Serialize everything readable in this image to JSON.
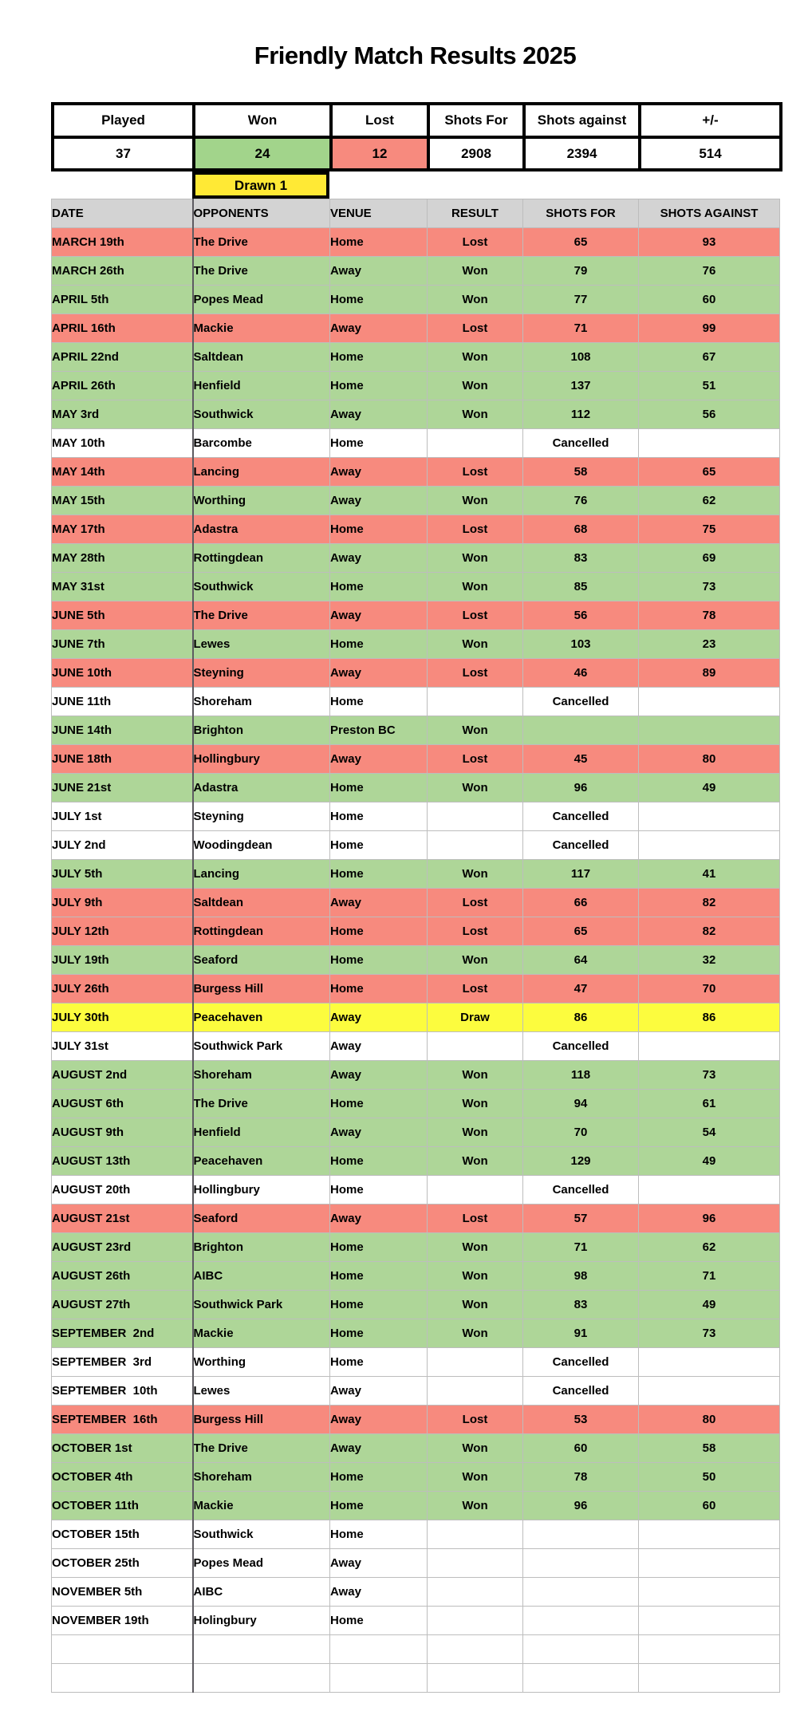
{
  "title": "Friendly Match Results 2025",
  "summary": {
    "headers": [
      "Played",
      "Won",
      "Lost",
      "Shots For",
      "Shots against",
      "+/-"
    ],
    "values": [
      "37",
      "24",
      "12",
      "2908",
      "2394",
      "514"
    ],
    "value_status": [
      "plain",
      "won",
      "lost",
      "plain",
      "plain",
      "plain"
    ],
    "drawn_label": "Drawn 1"
  },
  "table": {
    "headers": [
      "DATE",
      "OPPONENTS",
      "VENUE",
      "RESULT",
      "SHOTS FOR",
      "SHOTS AGAINST"
    ],
    "rows": [
      {
        "date": "MARCH 19th",
        "opponent": "The Drive",
        "venue": "Home",
        "result": "Lost",
        "shots_for": "65",
        "shots_against": "93",
        "status": "lost"
      },
      {
        "date": "MARCH 26th",
        "opponent": "The Drive",
        "venue": "Away",
        "result": "Won",
        "shots_for": "79",
        "shots_against": "76",
        "status": "won"
      },
      {
        "date": "APRIL 5th",
        "opponent": "Popes Mead",
        "venue": "Home",
        "result": "Won",
        "shots_for": "77",
        "shots_against": "60",
        "status": "won"
      },
      {
        "date": "APRIL 16th",
        "opponent": "Mackie",
        "venue": "Away",
        "result": "Lost",
        "shots_for": "71",
        "shots_against": "99",
        "status": "lost"
      },
      {
        "date": "APRIL 22nd",
        "opponent": "Saltdean",
        "venue": "Home",
        "result": "Won",
        "shots_for": "108",
        "shots_against": "67",
        "status": "won"
      },
      {
        "date": "APRIL 26th",
        "opponent": "Henfield",
        "venue": "Home",
        "result": "Won",
        "shots_for": "137",
        "shots_against": "51",
        "status": "won"
      },
      {
        "date": "MAY 3rd",
        "opponent": "Southwick",
        "venue": "Away",
        "result": "Won",
        "shots_for": "112",
        "shots_against": "56",
        "status": "won"
      },
      {
        "date": "MAY 10th",
        "opponent": "Barcombe",
        "venue": "Home",
        "result": "",
        "shots_for": "Cancelled",
        "shots_against": "",
        "status": "cancelled"
      },
      {
        "date": "MAY 14th",
        "opponent": "Lancing",
        "venue": "Away",
        "result": "Lost",
        "shots_for": "58",
        "shots_against": "65",
        "status": "lost"
      },
      {
        "date": "MAY 15th",
        "opponent": "Worthing",
        "venue": "Away",
        "result": "Won",
        "shots_for": "76",
        "shots_against": "62",
        "status": "won"
      },
      {
        "date": "MAY 17th",
        "opponent": "Adastra",
        "venue": "Home",
        "result": "Lost",
        "shots_for": "68",
        "shots_against": "75",
        "status": "lost"
      },
      {
        "date": "MAY 28th",
        "opponent": "Rottingdean",
        "venue": "Away",
        "result": "Won",
        "shots_for": "83",
        "shots_against": "69",
        "status": "won"
      },
      {
        "date": "MAY 31st",
        "opponent": "Southwick",
        "venue": "Home",
        "result": "Won",
        "shots_for": "85",
        "shots_against": "73",
        "status": "won"
      },
      {
        "date": "JUNE 5th",
        "opponent": "The Drive",
        "venue": "Away",
        "result": "Lost",
        "shots_for": "56",
        "shots_against": "78",
        "status": "lost"
      },
      {
        "date": "JUNE 7th",
        "opponent": "Lewes",
        "venue": "Home",
        "result": "Won",
        "shots_for": "103",
        "shots_against": "23",
        "status": "won"
      },
      {
        "date": "JUNE 10th",
        "opponent": "Steyning",
        "venue": "Away",
        "result": "Lost",
        "shots_for": "46",
        "shots_against": "89",
        "status": "lost"
      },
      {
        "date": "JUNE 11th",
        "opponent": "Shoreham",
        "venue": "Home",
        "result": "",
        "shots_for": "Cancelled",
        "shots_against": "",
        "status": "cancelled"
      },
      {
        "date": "JUNE 14th",
        "opponent": "Brighton",
        "venue": "Preston BC",
        "result": "Won",
        "shots_for": "",
        "shots_against": "",
        "status": "won"
      },
      {
        "date": "JUNE 18th",
        "opponent": "Hollingbury",
        "venue": "Away",
        "result": "Lost",
        "shots_for": "45",
        "shots_against": "80",
        "status": "lost"
      },
      {
        "date": "JUNE 21st",
        "opponent": "Adastra",
        "venue": "Home",
        "result": "Won",
        "shots_for": "96",
        "shots_against": "49",
        "status": "won"
      },
      {
        "date": "JULY 1st",
        "opponent": "Steyning",
        "venue": "Home",
        "result": "",
        "shots_for": "Cancelled",
        "shots_against": "",
        "status": "cancelled"
      },
      {
        "date": "JULY 2nd",
        "opponent": "Woodingdean",
        "venue": "Home",
        "result": "",
        "shots_for": "Cancelled",
        "shots_against": "",
        "status": "cancelled"
      },
      {
        "date": "JULY 5th",
        "opponent": "Lancing",
        "venue": "Home",
        "result": "Won",
        "shots_for": "117",
        "shots_against": "41",
        "status": "won"
      },
      {
        "date": "JULY 9th",
        "opponent": "Saltdean",
        "venue": "Away",
        "result": "Lost",
        "shots_for": "66",
        "shots_against": "82",
        "status": "lost"
      },
      {
        "date": "JULY 12th",
        "opponent": "Rottingdean",
        "venue": "Home",
        "result": "Lost",
        "shots_for": "65",
        "shots_against": "82",
        "status": "lost"
      },
      {
        "date": "JULY 19th",
        "opponent": "Seaford",
        "venue": "Home",
        "result": "Won",
        "shots_for": "64",
        "shots_against": "32",
        "status": "won"
      },
      {
        "date": "JULY 26th",
        "opponent": "Burgess Hill",
        "venue": "Home",
        "result": "Lost",
        "shots_for": "47",
        "shots_against": "70",
        "status": "lost"
      },
      {
        "date": "JULY 30th",
        "opponent": "Peacehaven",
        "venue": "Away",
        "result": "Draw",
        "shots_for": "86",
        "shots_against": "86",
        "status": "draw"
      },
      {
        "date": "JULY 31st",
        "opponent": "Southwick Park",
        "venue": "Away",
        "result": "",
        "shots_for": "Cancelled",
        "shots_against": "",
        "status": "cancelled"
      },
      {
        "date": "AUGUST 2nd",
        "opponent": "Shoreham",
        "venue": "Away",
        "result": "Won",
        "shots_for": "118",
        "shots_against": "73",
        "status": "won"
      },
      {
        "date": "AUGUST 6th",
        "opponent": "The Drive",
        "venue": "Home",
        "result": "Won",
        "shots_for": "94",
        "shots_against": "61",
        "status": "won"
      },
      {
        "date": "AUGUST 9th",
        "opponent": "Henfield",
        "venue": "Away",
        "result": "Won",
        "shots_for": "70",
        "shots_against": "54",
        "status": "won"
      },
      {
        "date": "AUGUST 13th",
        "opponent": "Peacehaven",
        "venue": "Home",
        "result": "Won",
        "shots_for": "129",
        "shots_against": "49",
        "status": "won"
      },
      {
        "date": "AUGUST 20th",
        "opponent": "Hollingbury",
        "venue": "Home",
        "result": "",
        "shots_for": "Cancelled",
        "shots_against": "",
        "status": "cancelled"
      },
      {
        "date": "AUGUST 21st",
        "opponent": "Seaford",
        "venue": "Away",
        "result": "Lost",
        "shots_for": "57",
        "shots_against": "96",
        "status": "lost"
      },
      {
        "date": "AUGUST 23rd",
        "opponent": "Brighton",
        "venue": "Home",
        "result": "Won",
        "shots_for": "71",
        "shots_against": "62",
        "status": "won"
      },
      {
        "date": "AUGUST 26th",
        "opponent": "AIBC",
        "venue": "Home",
        "result": "Won",
        "shots_for": "98",
        "shots_against": "71",
        "status": "won"
      },
      {
        "date": "AUGUST 27th",
        "opponent": "Southwick Park",
        "venue": "Home",
        "result": "Won",
        "shots_for": "83",
        "shots_against": "49",
        "status": "won"
      },
      {
        "date": "SEPTEMBER  2nd",
        "opponent": "Mackie",
        "venue": "Home",
        "result": "Won",
        "shots_for": "91",
        "shots_against": "73",
        "status": "won"
      },
      {
        "date": "SEPTEMBER  3rd",
        "opponent": "Worthing",
        "venue": "Home",
        "result": "",
        "shots_for": "Cancelled",
        "shots_against": "",
        "status": "cancelled"
      },
      {
        "date": "SEPTEMBER  10th",
        "opponent": "Lewes",
        "venue": "Away",
        "result": "",
        "shots_for": "Cancelled",
        "shots_against": "",
        "status": "cancelled"
      },
      {
        "date": "SEPTEMBER  16th",
        "opponent": "Burgess Hill",
        "venue": "Away",
        "result": "Lost",
        "shots_for": "53",
        "shots_against": "80",
        "status": "lost"
      },
      {
        "date": "OCTOBER 1st",
        "opponent": "The Drive",
        "venue": "Away",
        "result": "Won",
        "shots_for": "60",
        "shots_against": "58",
        "status": "won"
      },
      {
        "date": "OCTOBER 4th",
        "opponent": "Shoreham",
        "venue": "Home",
        "result": "Won",
        "shots_for": "78",
        "shots_against": "50",
        "status": "won"
      },
      {
        "date": "OCTOBER 11th",
        "opponent": "Mackie",
        "venue": "Home",
        "result": "Won",
        "shots_for": "96",
        "shots_against": "60",
        "status": "won"
      },
      {
        "date": "OCTOBER 15th",
        "opponent": "Southwick",
        "venue": "Home",
        "result": "",
        "shots_for": "",
        "shots_against": "",
        "status": "upcoming"
      },
      {
        "date": "OCTOBER 25th",
        "opponent": "Popes Mead",
        "venue": "Away",
        "result": "",
        "shots_for": "",
        "shots_against": "",
        "status": "upcoming"
      },
      {
        "date": "NOVEMBER 5th",
        "opponent": "AIBC",
        "venue": "Away",
        "result": "",
        "shots_for": "",
        "shots_against": "",
        "status": "upcoming"
      },
      {
        "date": "NOVEMBER 19th",
        "opponent": "Holingbury",
        "venue": "Home",
        "result": "",
        "shots_for": "",
        "shots_against": "",
        "status": "upcoming"
      },
      {
        "date": "",
        "opponent": "",
        "venue": "",
        "result": "",
        "shots_for": "",
        "shots_against": "",
        "status": "empty"
      },
      {
        "date": "",
        "opponent": "",
        "venue": "",
        "result": "",
        "shots_for": "",
        "shots_against": "",
        "status": "empty"
      }
    ]
  },
  "colors": {
    "won_row": "#aed698",
    "lost_row": "#f78a7e",
    "draw_row": "#fcfc3e",
    "cancelled_row": "#ffffff",
    "summary_won": "#a2d48b",
    "summary_lost": "#f78a7e",
    "drawn_cell": "#ffe935",
    "header_gray": "#d3d3d3"
  }
}
